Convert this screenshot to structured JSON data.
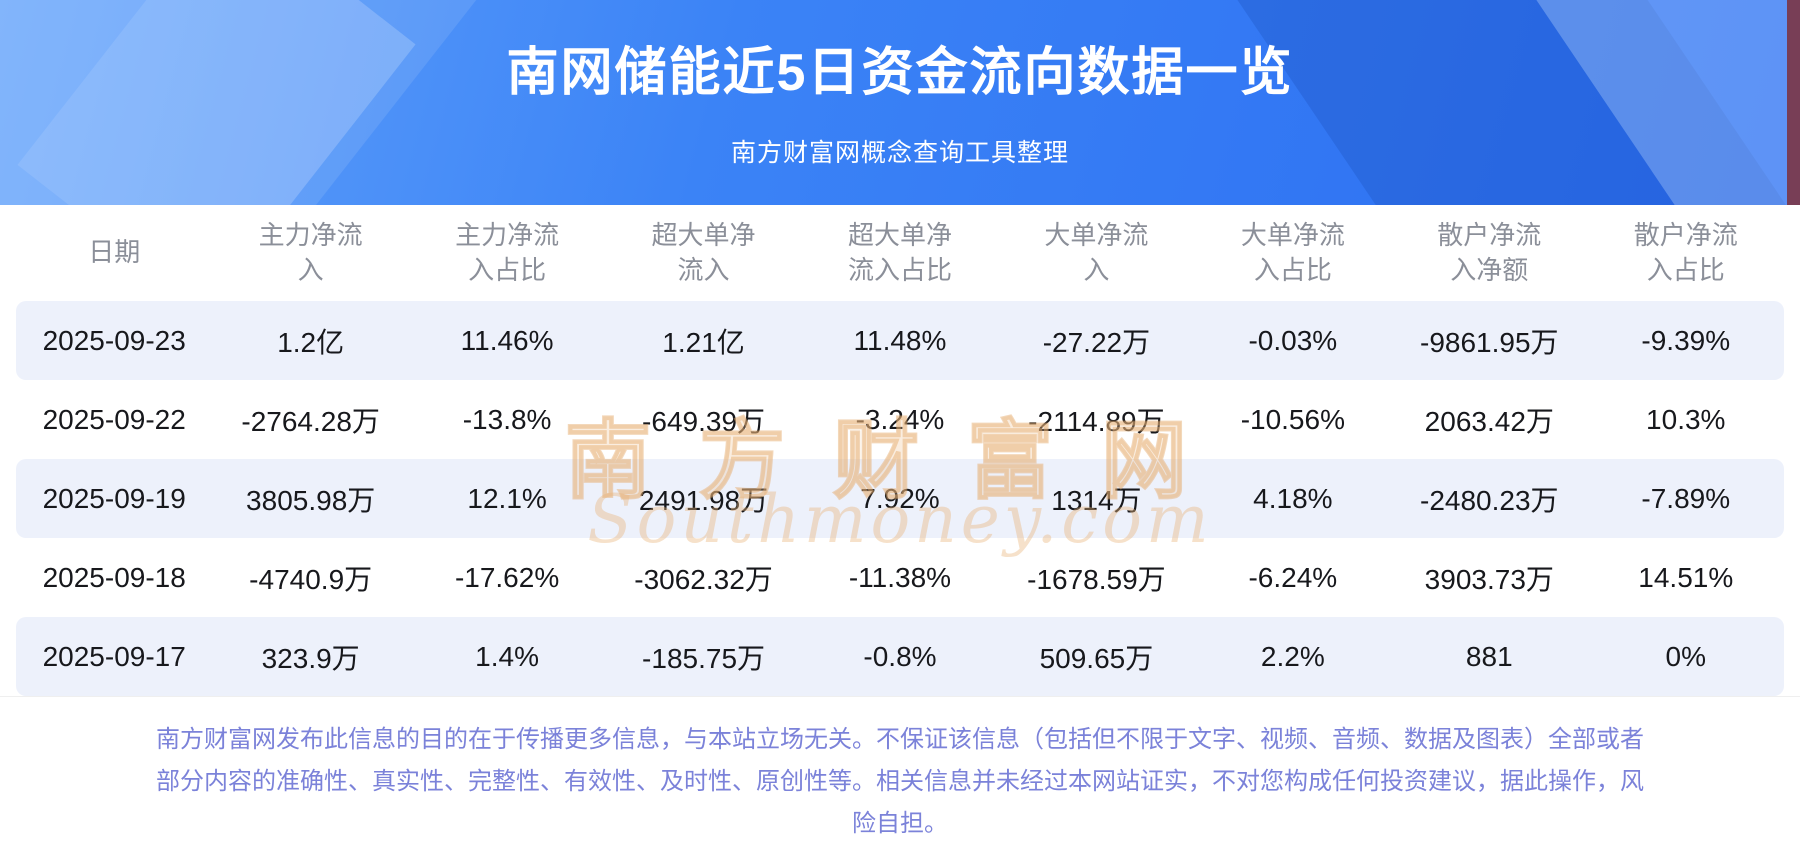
{
  "page": {
    "title": "南网储能近5日资金流向数据一览",
    "subtitle": "南方财富网概念查询工具整理"
  },
  "chart_data": {
    "type": "table",
    "title": "南网储能近5日资金流向数据一览",
    "columns": [
      "日期",
      "主力净流入",
      "主力净流入占比",
      "超大单净流入",
      "超大单净流入占比",
      "大单净流入",
      "大单净流入占比",
      "散户净流入净额",
      "散户净流入占比"
    ],
    "rows": [
      [
        "2025-09-23",
        "1.2亿",
        "11.46%",
        "1.21亿",
        "11.48%",
        "-27.22万",
        "-0.03%",
        "-9861.95万",
        "-9.39%"
      ],
      [
        "2025-09-22",
        "-2764.28万",
        "-13.8%",
        "-649.39万",
        "-3.24%",
        "-2114.89万",
        "-10.56%",
        "2063.42万",
        "10.3%"
      ],
      [
        "2025-09-19",
        "3805.98万",
        "12.1%",
        "2491.98万",
        "7.92%",
        "1314万",
        "4.18%",
        "-2480.23万",
        "-7.89%"
      ],
      [
        "2025-09-18",
        "-4740.9万",
        "-17.62%",
        "-3062.32万",
        "-11.38%",
        "-1678.59万",
        "-6.24%",
        "3903.73万",
        "14.51%"
      ],
      [
        "2025-09-17",
        "323.9万",
        "1.4%",
        "-185.75万",
        "-0.8%",
        "509.65万",
        "2.2%",
        "881",
        "0%"
      ]
    ]
  },
  "watermark": {
    "cn": "南方财富网",
    "en": "Southmoney.com"
  },
  "footer": {
    "disclaimer": "南方财富网发布此信息的目的在于传播更多信息，与本站立场无关。不保证该信息（包括但不限于文字、视频、音频、数据及图表）全部或者部分内容的准确性、真实性、完整性、有效性、及时性、原创性等。相关信息并未经过本网站证实，不对您构成任何投资建议，据此操作，风险自担。"
  },
  "colors": {
    "header_blue": "#2e76f3",
    "stripe": "#edf1fb",
    "footer_text": "#7b82d9",
    "watermark": "#e9b478"
  }
}
